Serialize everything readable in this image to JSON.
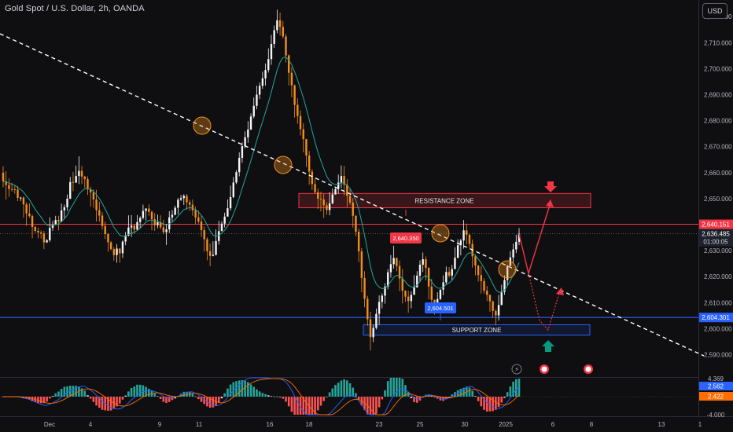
{
  "header": {
    "title": "Gold Spot / U.S. Dollar, 2h, OANDA",
    "currency": "USD"
  },
  "colors": {
    "background": "#0f0f12",
    "bull": "#f5f5f5",
    "bear": "#f28e1c",
    "ma_line": "#26a69a",
    "trendline": "#ffffff",
    "resistance": "#f23645",
    "support": "#2962ff",
    "arrow_up": "#089981",
    "arrow_down": "#f23645"
  },
  "chart_data": {
    "type": "candlestick",
    "y_axis": {
      "range": [
        2582,
        2724
      ],
      "ticks": [
        "2,590.000",
        "2,600.000",
        "2,610.000",
        "2,620.000",
        "2,630.000",
        "2,640.000",
        "2,650.000",
        "2,660.000",
        "2,670.000",
        "2,680.000",
        "2,690.000",
        "2,700.000",
        "2,710.000",
        "2,720.000"
      ],
      "tick_values": [
        2590,
        2600,
        2610,
        2620,
        2630,
        2640,
        2650,
        2660,
        2670,
        2680,
        2690,
        2700,
        2710,
        2720
      ]
    },
    "x_axis": {
      "ticks": [
        "Dec",
        "4",
        "9",
        "11",
        "16",
        "18",
        "23",
        "25",
        "30",
        "2025",
        "6",
        "8",
        "13",
        "1"
      ]
    },
    "last_price": {
      "value": "2,636.485",
      "countdown": "01:00:05"
    },
    "resistance_level": {
      "value": 2640.151,
      "label": "2,640.151"
    },
    "support_level": {
      "value": 2604.301,
      "label": "2,604.301"
    },
    "resistance_zone": {
      "label": "RESISTANCE ZONE",
      "low": 2646.5,
      "high": 2652
    },
    "support_zone": {
      "label": "SUPPORT ZONE",
      "low": 2597.5,
      "high": 2601.5
    },
    "callouts": [
      {
        "label": "2,640.350",
        "value": 2640.35
      },
      {
        "label": "2,604.501",
        "value": 2604.501
      }
    ],
    "oscillator": {
      "labels": [
        "4.369",
        "2.562",
        "2.422",
        "-4.000"
      ]
    },
    "candles": [
      [
        2660.0,
        2656.7,
        2662.5,
        2654.4
      ],
      [
        2656.7,
        2655.3,
        2660.6,
        2649.7
      ],
      [
        2655.3,
        2653.7,
        2657.8,
        2650.7
      ],
      [
        2653.7,
        2653.6,
        2656.1,
        2652.7
      ],
      [
        2653.6,
        2653.5,
        2655.3,
        2651.9
      ],
      [
        2653.5,
        2650.3,
        2654.8,
        2649.0
      ],
      [
        2650.3,
        2650.4,
        2650.7,
        2649.1
      ],
      [
        2650.4,
        2647.8,
        2650.9,
        2642.7
      ],
      [
        2647.8,
        2644.3,
        2648.6,
        2639.6
      ],
      [
        2644.3,
        2643.3,
        2648.2,
        2642.7
      ],
      [
        2643.3,
        2639.1,
        2643.9,
        2634.8
      ],
      [
        2639.1,
        2637.6,
        2639.6,
        2636.9
      ],
      [
        2637.6,
        2637.0,
        2638.8,
        2634.8
      ],
      [
        2637.0,
        2636.6,
        2637.8,
        2634.6
      ],
      [
        2636.6,
        2633.2,
        2637.6,
        2630.6
      ],
      [
        2633.2,
        2634.0,
        2634.5,
        2632.9
      ],
      [
        2634.0,
        2638.8,
        2642.8,
        2633.4
      ],
      [
        2638.8,
        2639.9,
        2641.4,
        2637.6
      ],
      [
        2639.9,
        2641.8,
        2643.4,
        2639.8
      ],
      [
        2641.8,
        2641.2,
        2643.4,
        2637.8
      ],
      [
        2641.2,
        2645.5,
        2648.1,
        2640.9
      ],
      [
        2645.5,
        2646.7,
        2647.7,
        2642.4
      ],
      [
        2646.7,
        2650.0,
        2651.6,
        2645.3
      ],
      [
        2650.0,
        2656.4,
        2658.4,
        2649.8
      ],
      [
        2656.4,
        2656.2,
        2660.3,
        2652.9
      ],
      [
        2656.2,
        2658.7,
        2662.7,
        2656.0
      ],
      [
        2658.7,
        2660.7,
        2666.3,
        2655.6
      ],
      [
        2660.7,
        2658.5,
        2662.6,
        2655.6
      ],
      [
        2658.5,
        2657.5,
        2658.8,
        2654.1
      ],
      [
        2657.5,
        2653.7,
        2658.6,
        2651.4
      ],
      [
        2653.7,
        2652.4,
        2654.6,
        2647.0
      ],
      [
        2652.4,
        2649.7,
        2653.6,
        2646.5
      ],
      [
        2649.7,
        2645.6,
        2653.4,
        2641.2
      ],
      [
        2645.6,
        2643.5,
        2648.8,
        2641.1
      ],
      [
        2643.5,
        2639.5,
        2644.8,
        2638.1
      ],
      [
        2639.5,
        2636.4,
        2641.2,
        2634.5
      ],
      [
        2636.4,
        2633.2,
        2636.7,
        2629.6
      ],
      [
        2633.2,
        2630.6,
        2633.7,
        2630.1
      ],
      [
        2630.6,
        2628.3,
        2631.4,
        2626.2
      ],
      [
        2628.3,
        2630.8,
        2632.5,
        2625.4
      ],
      [
        2630.8,
        2629.0,
        2630.9,
        2625.4
      ],
      [
        2629.0,
        2633.5,
        2634.0,
        2627.2
      ],
      [
        2633.5,
        2635.8,
        2637.2,
        2632.1
      ],
      [
        2635.8,
        2638.9,
        2643.6,
        2635.5
      ],
      [
        2638.9,
        2639.6,
        2643.7,
        2635.3
      ],
      [
        2639.6,
        2638.1,
        2640.1,
        2636.5
      ],
      [
        2638.1,
        2641.0,
        2643.7,
        2637.9
      ],
      [
        2641.0,
        2642.6,
        2643.2,
        2638.7
      ],
      [
        2642.6,
        2645.3,
        2647.7,
        2642.0
      ],
      [
        2645.3,
        2646.2,
        2646.3,
        2641.6
      ],
      [
        2646.2,
        2644.9,
        2647.8,
        2643.4
      ],
      [
        2644.9,
        2642.1,
        2645.5,
        2637.8
      ],
      [
        2642.1,
        2639.8,
        2644.5,
        2637.6
      ],
      [
        2639.8,
        2640.9,
        2643.9,
        2638.6
      ],
      [
        2640.9,
        2639.0,
        2643.6,
        2638.2
      ],
      [
        2639.0,
        2637.1,
        2641.9,
        2636.3
      ],
      [
        2637.1,
        2638.2,
        2640.3,
        2632.2
      ],
      [
        2638.2,
        2642.8,
        2645.2,
        2636.8
      ],
      [
        2642.8,
        2643.8,
        2645.6,
        2641.3
      ],
      [
        2643.8,
        2646.5,
        2647.3,
        2643.6
      ],
      [
        2646.5,
        2649.6,
        2650.3,
        2644.0
      ],
      [
        2649.6,
        2650.2,
        2651.4,
        2649.1
      ],
      [
        2650.2,
        2651.1,
        2651.7,
        2647.6
      ],
      [
        2651.1,
        2648.6,
        2651.8,
        2645.8
      ],
      [
        2648.6,
        2647.7,
        2649.5,
        2645.3
      ],
      [
        2647.7,
        2645.5,
        2649.7,
        2643.4
      ],
      [
        2645.5,
        2642.8,
        2646.9,
        2640.2
      ],
      [
        2642.8,
        2641.2,
        2645.4,
        2640.4
      ],
      [
        2641.2,
        2637.9,
        2643.6,
        2635.3
      ],
      [
        2637.9,
        2634.4,
        2639.3,
        2629.6
      ],
      [
        2634.4,
        2629.8,
        2635.1,
        2626.3
      ],
      [
        2629.8,
        2628.0,
        2632.7,
        2624.0
      ],
      [
        2628.0,
        2628.4,
        2633.6,
        2627.8
      ],
      [
        2628.4,
        2633.7,
        2638.2,
        2628.1
      ],
      [
        2633.7,
        2637.5,
        2641.5,
        2632.3
      ],
      [
        2637.5,
        2640.4,
        2641.3,
        2638.6
      ],
      [
        2640.4,
        2643.1,
        2644.6,
        2638.9
      ],
      [
        2643.1,
        2646.3,
        2649.7,
        2645.4
      ],
      [
        2646.3,
        2650.6,
        2655.0,
        2645.4
      ],
      [
        2650.6,
        2656.2,
        2658.3,
        2650.2
      ],
      [
        2656.2,
        2660.2,
        2661.0,
        2655.6
      ],
      [
        2660.2,
        2665.7,
        2667.8,
        2658.6
      ],
      [
        2665.7,
        2670.2,
        2671.6,
        2663.8
      ],
      [
        2670.2,
        2673.6,
        2675.9,
        2669.3
      ],
      [
        2673.6,
        2676.6,
        2679.8,
        2671.5
      ],
      [
        2676.6,
        2681.6,
        2682.8,
        2676.4
      ],
      [
        2681.6,
        2685.7,
        2688.9,
        2680.9
      ],
      [
        2685.7,
        2690.0,
        2693.5,
        2684.4
      ],
      [
        2690.0,
        2693.4,
        2694.7,
        2688.3
      ],
      [
        2693.4,
        2696.3,
        2698.9,
        2692.2
      ],
      [
        2696.3,
        2699.5,
        2702.0,
        2693.5
      ],
      [
        2699.5,
        2703.7,
        2707.8,
        2698.5
      ],
      [
        2703.7,
        2709.5,
        2713.0,
        2701.5
      ],
      [
        2709.5,
        2714.8,
        2716.6,
        2708.0
      ],
      [
        2714.8,
        2718.6,
        2722.7,
        2713.6
      ],
      [
        2718.6,
        2716.1,
        2721.6,
        2712.7
      ],
      [
        2716.1,
        2712.4,
        2718.4,
        2711.6
      ],
      [
        2712.4,
        2705.1,
        2713.4,
        2702.4
      ],
      [
        2705.1,
        2698.4,
        2705.5,
        2693.5
      ],
      [
        2698.4,
        2693.6,
        2700.6,
        2689.0
      ],
      [
        2693.6,
        2686.1,
        2693.9,
        2681.2
      ],
      [
        2686.1,
        2681.8,
        2688.6,
        2678.8
      ],
      [
        2681.8,
        2676.7,
        2684.0,
        2674.3
      ],
      [
        2676.7,
        2672.9,
        2679.0,
        2667.8
      ],
      [
        2672.9,
        2666.6,
        2673.0,
        2662.2
      ],
      [
        2666.6,
        2660.4,
        2668.4,
        2655.4
      ],
      [
        2660.4,
        2655.6,
        2661.4,
        2653.3
      ],
      [
        2655.6,
        2652.5,
        2657.6,
        2651.8
      ],
      [
        2652.5,
        2650.0,
        2653.9,
        2646.0
      ],
      [
        2650.0,
        2649.7,
        2652.7,
        2645.1
      ],
      [
        2649.7,
        2647.5,
        2651.9,
        2642.6
      ],
      [
        2647.5,
        2645.6,
        2648.6,
        2643.8
      ],
      [
        2645.6,
        2648.2,
        2652.5,
        2643.6
      ],
      [
        2648.2,
        2651.6,
        2653.9,
        2647.9
      ],
      [
        2651.6,
        2653.7,
        2654.1,
        2651.6
      ],
      [
        2653.7,
        2656.2,
        2659.3,
        2651.9
      ],
      [
        2656.2,
        2658.7,
        2662.8,
        2654.1
      ],
      [
        2658.7,
        2655.4,
        2662.6,
        2651.3
      ],
      [
        2655.4,
        2651.1,
        2657.5,
        2646.8
      ],
      [
        2651.1,
        2648.5,
        2653.6,
        2647.6
      ],
      [
        2648.5,
        2643.4,
        2650.2,
        2638.9
      ],
      [
        2643.4,
        2637.3,
        2643.7,
        2635.6
      ],
      [
        2637.3,
        2629.7,
        2638.5,
        2625.6
      ],
      [
        2629.7,
        2619.5,
        2631.0,
        2614.0
      ],
      [
        2619.5,
        2611.5,
        2622.1,
        2608.2
      ],
      [
        2611.5,
        2603.6,
        2612.6,
        2601.1
      ],
      [
        2603.6,
        2596.7,
        2606.5,
        2591.6
      ],
      [
        2596.7,
        2600.3,
        2601.5,
        2594.8
      ],
      [
        2600.3,
        2605.7,
        2607.7,
        2599.7
      ],
      [
        2605.7,
        2610.3,
        2612.8,
        2601.5
      ],
      [
        2610.3,
        2612.7,
        2613.6,
        2607.8
      ],
      [
        2612.7,
        2616.2,
        2617.5,
        2609.6
      ],
      [
        2616.2,
        2621.7,
        2622.9,
        2615.1
      ],
      [
        2621.7,
        2624.8,
        2628.3,
        2619.6
      ],
      [
        2624.8,
        2627.2,
        2631.9,
        2623.1
      ],
      [
        2627.2,
        2624.1,
        2627.3,
        2622.1
      ],
      [
        2624.1,
        2619.3,
        2626.2,
        2614.4
      ],
      [
        2619.3,
        2614.6,
        2622.9,
        2609.7
      ],
      [
        2614.6,
        2612.3,
        2614.7,
        2610.3
      ],
      [
        2612.3,
        2610.6,
        2614.5,
        2606.1
      ],
      [
        2610.6,
        2613.0,
        2614.4,
        2607.8
      ],
      [
        2613.0,
        2615.9,
        2620.6,
        2614.1
      ],
      [
        2615.9,
        2620.4,
        2622.1,
        2615.7
      ],
      [
        2620.4,
        2624.6,
        2626.3,
        2617.9
      ],
      [
        2624.6,
        2626.7,
        2629.3,
        2621.8
      ],
      [
        2626.7,
        2623.4,
        2627.8,
        2618.6
      ],
      [
        2623.4,
        2616.2,
        2623.6,
        2611.2
      ],
      [
        2616.2,
        2611.1,
        2619.1,
        2608.5
      ],
      [
        2611.1,
        2609.6,
        2611.2,
        2605.4
      ],
      [
        2609.6,
        2611.4,
        2614.0,
        2609.0
      ],
      [
        2611.4,
        2615.0,
        2615.1,
        2611.0
      ],
      [
        2615.0,
        2617.8,
        2620.5,
        2612.9
      ],
      [
        2617.8,
        2621.8,
        2623.9,
        2617.0
      ],
      [
        2621.8,
        2620.4,
        2623.7,
        2619.6
      ],
      [
        2620.4,
        2622.9,
        2624.5,
        2618.6
      ],
      [
        2622.9,
        2627.3,
        2631.3,
        2626.4
      ],
      [
        2627.3,
        2632.1,
        2634.4,
        2627.0
      ],
      [
        2632.1,
        2633.9,
        2634.6,
        2628.2
      ],
      [
        2633.9,
        2637.8,
        2641.8,
        2630.8
      ],
      [
        2637.8,
        2636.1,
        2640.4,
        2632.4
      ],
      [
        2636.1,
        2632.6,
        2636.6,
        2631.0
      ],
      [
        2632.6,
        2627.8,
        2634.3,
        2623.5
      ],
      [
        2627.8,
        2624.3,
        2628.6,
        2620.5
      ],
      [
        2624.3,
        2620.6,
        2624.4,
        2618.1
      ],
      [
        2620.6,
        2618.3,
        2624.1,
        2613.5
      ],
      [
        2618.3,
        2614.6,
        2619.4,
        2613.5
      ],
      [
        2614.6,
        2613.0,
        2616.4,
        2610.6
      ],
      [
        2613.0,
        2610.5,
        2613.1,
        2606.5
      ],
      [
        2610.5,
        2606.8,
        2610.8,
        2604.3
      ],
      [
        2606.8,
        2605.1,
        2607.4,
        2601.4
      ],
      [
        2605.1,
        2609.1,
        2613.0,
        2603.1
      ],
      [
        2609.1,
        2614.2,
        2616.9,
        2609.0
      ],
      [
        2614.2,
        2618.7,
        2620.5,
        2613.0
      ],
      [
        2618.7,
        2624.1,
        2624.6,
        2616.3
      ],
      [
        2624.1,
        2627.4,
        2629.8,
        2625.1
      ],
      [
        2627.4,
        2630.5,
        2632.7,
        2625.4
      ],
      [
        2630.5,
        2633.4,
        2636.1,
        2629.1
      ],
      [
        2633.4,
        2636.5,
        2638.7,
        2632.1
      ]
    ]
  }
}
